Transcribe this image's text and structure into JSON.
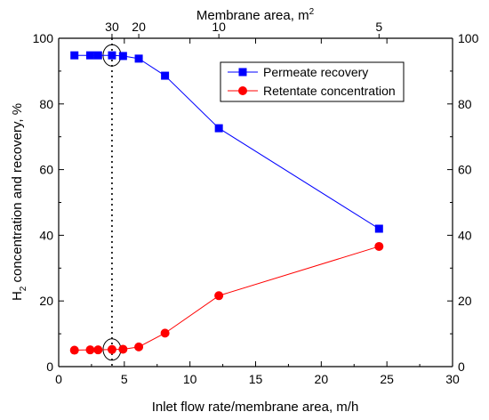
{
  "chart_data": {
    "type": "line",
    "xlabel": "Inlet flow rate/membrane area, m/h",
    "ylabel_main": "H",
    "ylabel_sub": "2",
    "ylabel_rest": " concentration and recovery, %",
    "x2label_main": "Membrane area, m",
    "x2label_sup": "2",
    "xlim": [
      0,
      30
    ],
    "ylim": [
      0,
      100
    ],
    "x_ticks": [
      0,
      5,
      10,
      15,
      20,
      25,
      30
    ],
    "y_ticks": [
      0,
      20,
      40,
      60,
      80,
      100
    ],
    "x2_ticks": [
      {
        "x": 4.06,
        "label": "30"
      },
      {
        "x": 6.1,
        "label": "20"
      },
      {
        "x": 12.2,
        "label": "10"
      },
      {
        "x": 24.4,
        "label": "5"
      }
    ],
    "legend_position": "top-right",
    "grid": false,
    "highlight_x": 4.06,
    "series": [
      {
        "name": "Permeate recovery",
        "color": "#0000ff",
        "marker": "square",
        "x": [
          1.2,
          2.4,
          3.0,
          4.06,
          4.9,
          6.1,
          8.1,
          12.2,
          24.4
        ],
        "y": [
          94.8,
          94.8,
          94.8,
          94.8,
          94.6,
          93.8,
          88.6,
          72.6,
          42.0
        ]
      },
      {
        "name": "Retentate concentration",
        "color": "#ff0000",
        "marker": "circle",
        "x": [
          1.2,
          2.4,
          3.0,
          4.06,
          4.9,
          6.1,
          8.1,
          12.2,
          24.4
        ],
        "y": [
          5.0,
          5.1,
          5.1,
          5.2,
          5.3,
          6.0,
          10.2,
          21.6,
          36.6
        ]
      }
    ]
  }
}
